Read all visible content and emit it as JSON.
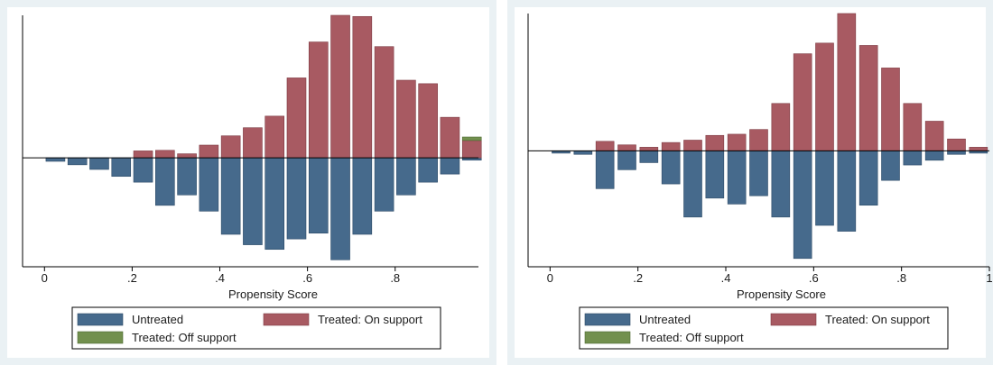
{
  "colors": {
    "untreated": "#466a8c",
    "treated_on": "#a85a62",
    "treated_off": "#72904e",
    "frame_bg": "#eaf1f4"
  },
  "chart_data": [
    {
      "type": "bar",
      "xlabel": "Propensity Score",
      "xticks": [
        "0",
        ".2",
        ".4",
        ".6",
        ".8"
      ],
      "x": [
        0.025,
        0.075,
        0.125,
        0.175,
        0.225,
        0.275,
        0.325,
        0.375,
        0.425,
        0.475,
        0.525,
        0.575,
        0.625,
        0.675,
        0.725,
        0.775,
        0.825,
        0.875,
        0.925,
        0.975
      ],
      "series": [
        {
          "name": "Untreated",
          "values": [
            -0.3,
            -0.6,
            -1.0,
            -1.6,
            -2.1,
            -4.1,
            -3.2,
            -4.6,
            -6.6,
            -7.5,
            -7.9,
            -7.0,
            -6.5,
            -8.8,
            -6.6,
            -4.6,
            -3.2,
            -2.1,
            -1.4,
            -0.2
          ]
        },
        {
          "name": "Treated: On support",
          "values": [
            0,
            0,
            0,
            0,
            0.6,
            0.65,
            0.35,
            1.1,
            1.9,
            2.6,
            3.6,
            6.9,
            10.0,
            12.3,
            12.2,
            9.6,
            6.7,
            6.4,
            3.5,
            1.5
          ]
        },
        {
          "name": "Treated: Off support",
          "values": [
            0,
            0,
            0,
            0,
            0,
            0,
            0,
            0,
            0,
            0,
            0,
            0,
            0,
            0,
            0,
            0,
            0,
            0,
            0,
            0.3
          ]
        }
      ],
      "xlim": [
        -0.05,
        0.99
      ],
      "ylim": [
        -9.4,
        12.3
      ],
      "legend": [
        "Untreated",
        "Treated: On support",
        "Treated: Off support"
      ],
      "legend_position": "bottom"
    },
    {
      "type": "bar",
      "xlabel": "Propensity Score",
      "xticks": [
        "0",
        ".2",
        ".4",
        ".6",
        ".8",
        "1"
      ],
      "x": [
        0.025,
        0.075,
        0.125,
        0.175,
        0.225,
        0.275,
        0.325,
        0.375,
        0.425,
        0.475,
        0.525,
        0.575,
        0.625,
        0.675,
        0.725,
        0.775,
        0.825,
        0.875,
        0.925,
        0.975
      ],
      "series": [
        {
          "name": "Untreated",
          "values": [
            -0.2,
            -0.3,
            -3.2,
            -1.6,
            -1.0,
            -2.8,
            -5.6,
            -4.0,
            -4.5,
            -3.8,
            -5.6,
            -9.1,
            -6.3,
            -6.8,
            -4.6,
            -2.5,
            -1.2,
            -0.8,
            -0.3,
            -0.2
          ]
        },
        {
          "name": "Treated: On support",
          "values": [
            0,
            0,
            0.8,
            0.5,
            0.3,
            0.7,
            0.9,
            1.3,
            1.4,
            1.8,
            4.0,
            8.2,
            9.1,
            11.6,
            8.9,
            7.0,
            4.0,
            2.5,
            1.0,
            0.3
          ]
        },
        {
          "name": "Treated: Off support",
          "values": [
            0,
            0,
            0,
            0,
            0,
            0,
            0,
            0,
            0,
            0,
            0,
            0,
            0,
            0,
            0,
            0,
            0,
            0,
            0,
            0
          ]
        }
      ],
      "xlim": [
        -0.05,
        1.0
      ],
      "ylim": [
        -9.8,
        11.6
      ],
      "legend": [
        "Untreated",
        "Treated: On support",
        "Treated: Off support"
      ],
      "legend_position": "bottom"
    }
  ]
}
